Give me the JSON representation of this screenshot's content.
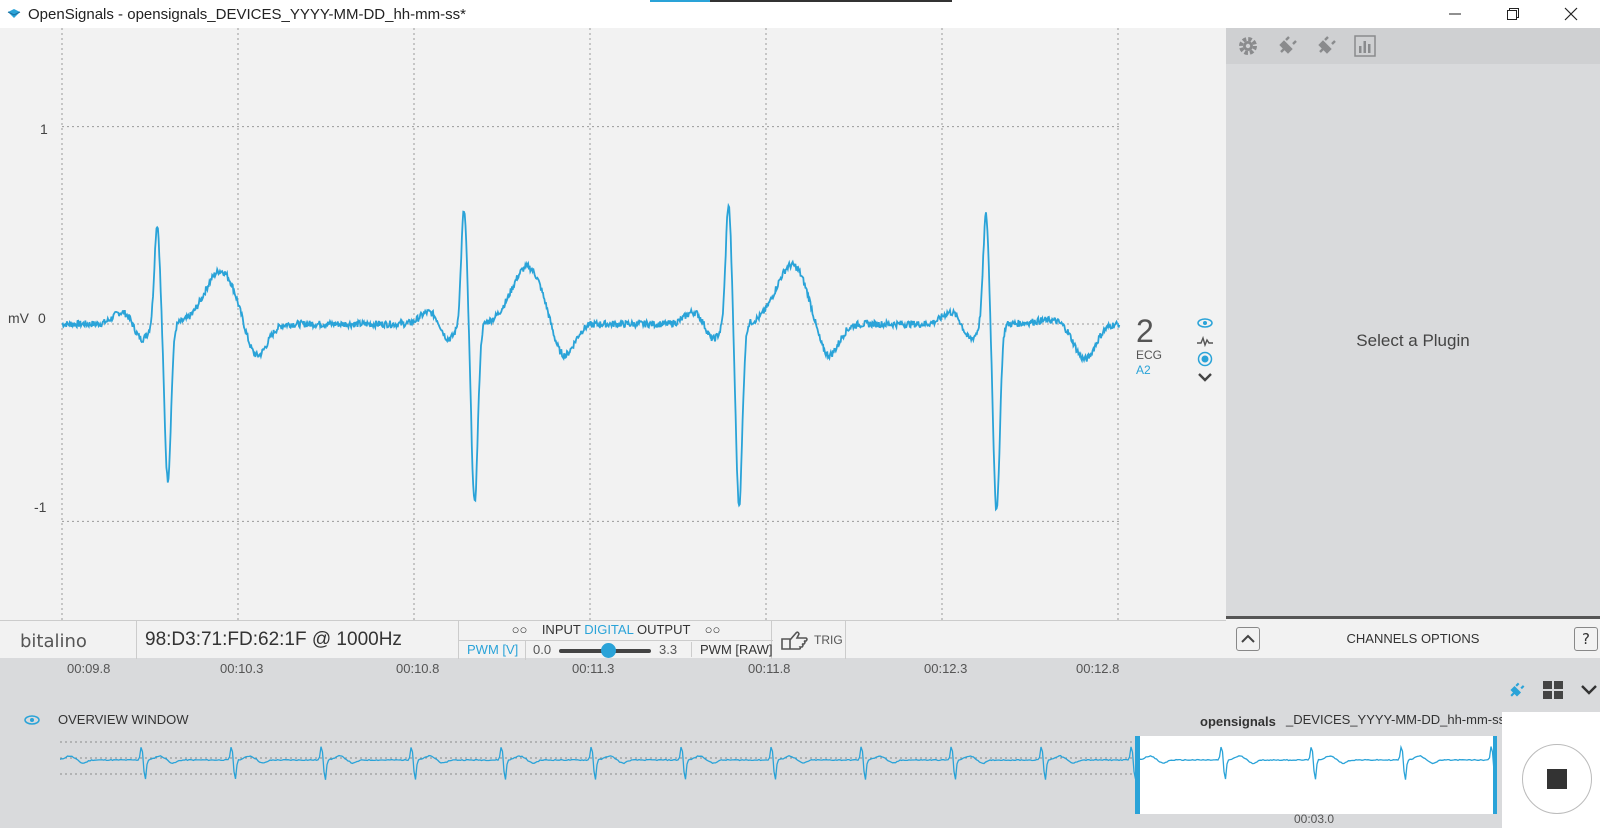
{
  "window": {
    "title": "OpenSignals - opensignals_DEVICES_YYYY-MM-DD_hh-mm-ss*"
  },
  "plot": {
    "y_unit": "mV",
    "y_ticks": [
      "1",
      "0",
      "-1"
    ],
    "channel": {
      "number": "2",
      "type": "ECG",
      "port": "A2"
    },
    "line_color": "#2aa3d8"
  },
  "side_panel": {
    "tools": [
      "gear-icon",
      "plug-icon",
      "plug-icon",
      "bar-chart-icon"
    ],
    "placeholder": "Select a Plugin"
  },
  "device_bar": {
    "logo_text": "bitalino",
    "device": "98:D3:71:FD:62:1F @ 1000Hz",
    "dio": {
      "input": "INPUT",
      "digital": "DIGITAL",
      "output": "OUTPUT",
      "pwm_v": "PWM [V]",
      "min": "0.0",
      "max": "3.3",
      "pwm_raw": "PWM [RAW]"
    },
    "trigger": "TRIG"
  },
  "channels_options": {
    "label": "CHANNELS OPTIONS",
    "help": "?"
  },
  "timeline": {
    "ticks": [
      "00:09.8",
      "00:10.3",
      "00:10.8",
      "00:11.3",
      "00:11.8",
      "00:12.3",
      "00:12.8"
    ]
  },
  "overview": {
    "label": "OVERVIEW WINDOW",
    "file_prefix": "opensignals",
    "file_suffix": "_DEVICES_YYYY-MM-DD_hh-mm-ss*",
    "time": "00:03.0"
  },
  "chart_data": {
    "type": "line",
    "title": "",
    "xlabel": "",
    "ylabel": "mV",
    "xlim": [
      9.6,
      12.6
    ],
    "ylim": [
      -1.5,
      1.5
    ],
    "grid": true,
    "series": [
      {
        "name": "ECG",
        "beats_r_peak_time_s": [
          9.87,
          10.74,
          11.49,
          12.22
        ],
        "r_peak_mV": [
          0.39,
          0.46,
          0.49,
          0.44
        ],
        "s_trough_mV": [
          -0.74,
          -0.86,
          -0.87,
          -0.9
        ],
        "t_wave_peak_mV": [
          0.25,
          0.27,
          0.28,
          0.0
        ],
        "baseline_mV": 0.0
      }
    ]
  }
}
